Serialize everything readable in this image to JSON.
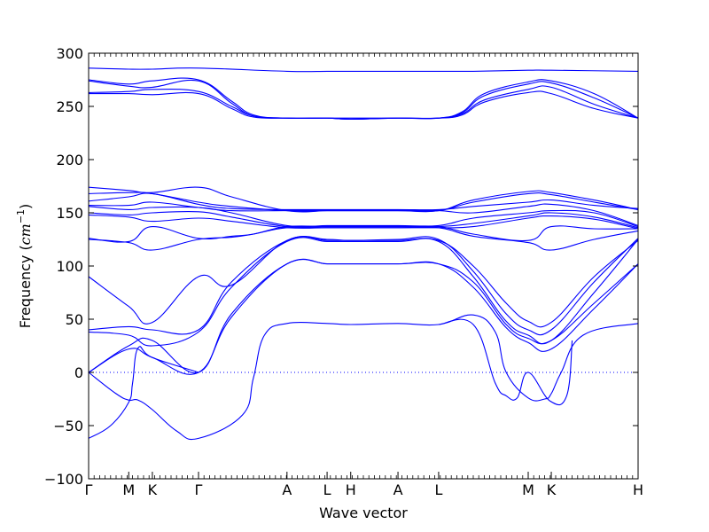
{
  "chart_data": {
    "type": "line",
    "title": "",
    "xlabel": "Wave vector",
    "ylabel_text": "Frequency (",
    "ylabel_math": "cm",
    "ylabel_exp": "−1",
    "ylabel_close": ")",
    "ylim": [
      -100,
      300
    ],
    "yticks": [
      -100,
      -50,
      0,
      50,
      100,
      150,
      200,
      250,
      300
    ],
    "ytick_labels": [
      "−100",
      "−50",
      "0",
      "50",
      "100",
      "150",
      "200",
      "250",
      "300"
    ],
    "xlim": [
      0,
      1
    ],
    "xticks": [
      {
        "label": "Γ",
        "x": 0.0
      },
      {
        "label": "M",
        "x": 0.073
      },
      {
        "label": "K",
        "x": 0.116
      },
      {
        "label": "Γ",
        "x": 0.2
      },
      {
        "label": "A",
        "x": 0.361
      },
      {
        "label": "L",
        "x": 0.434
      },
      {
        "label": "H",
        "x": 0.477
      },
      {
        "label": "A",
        "x": 0.563
      },
      {
        "label": "L",
        "x": 0.637
      },
      {
        "label": "M",
        "x": 0.8
      },
      {
        "label": "K",
        "x": 0.842
      },
      {
        "label": "H",
        "x": 1.0
      }
    ],
    "zero_line": true,
    "line_color": "#0000ff",
    "branches": [
      {
        "x": [
          0,
          0.073,
          0.116,
          0.2,
          0.361,
          0.434,
          0.477,
          0.563,
          0.637,
          0.7,
          0.8,
          0.842,
          1.0
        ],
        "y": [
          286,
          285,
          285,
          286,
          283,
          283,
          283,
          283,
          283,
          283,
          284,
          284,
          283
        ]
      },
      {
        "x": [
          0,
          0.073,
          0.116,
          0.2,
          0.26,
          0.3,
          0.361,
          0.434,
          0.477,
          0.563,
          0.637,
          0.68,
          0.72,
          0.8,
          0.842,
          0.92,
          1.0
        ],
        "y": [
          275,
          271,
          274,
          275,
          255,
          242,
          239,
          239,
          238,
          239,
          239,
          245,
          262,
          273,
          274,
          262,
          239
        ]
      },
      {
        "x": [
          0,
          0.073,
          0.116,
          0.2,
          0.26,
          0.3,
          0.361,
          0.434,
          0.477,
          0.563,
          0.637,
          0.68,
          0.72,
          0.8,
          0.842,
          0.92,
          1.0
        ],
        "y": [
          274,
          269,
          268,
          274,
          253,
          241,
          239,
          239,
          239,
          239,
          239,
          244,
          260,
          271,
          272,
          258,
          239
        ]
      },
      {
        "x": [
          0,
          0.073,
          0.116,
          0.2,
          0.26,
          0.3,
          0.361,
          0.434,
          0.477,
          0.563,
          0.637,
          0.68,
          0.72,
          0.8,
          0.842,
          0.92,
          1.0
        ],
        "y": [
          263,
          264,
          266,
          264,
          250,
          241,
          239,
          239,
          238,
          239,
          239,
          243,
          256,
          266,
          268,
          252,
          239
        ]
      },
      {
        "x": [
          0,
          0.073,
          0.116,
          0.2,
          0.26,
          0.3,
          0.361,
          0.434,
          0.477,
          0.563,
          0.637,
          0.68,
          0.72,
          0.8,
          0.842,
          0.92,
          1.0
        ],
        "y": [
          262,
          262,
          261,
          262,
          248,
          240,
          239,
          239,
          238,
          239,
          239,
          242,
          254,
          263,
          262,
          248,
          239
        ]
      },
      {
        "x": [
          0,
          0.073,
          0.116,
          0.2,
          0.26,
          0.361,
          0.434,
          0.477,
          0.563,
          0.637,
          0.7,
          0.8,
          0.842,
          0.92,
          1.0
        ],
        "y": [
          174,
          171,
          169,
          174,
          165,
          152,
          152,
          152,
          152,
          152,
          162,
          170,
          169,
          162,
          153
        ]
      },
      {
        "x": [
          0,
          0.073,
          0.116,
          0.2,
          0.26,
          0.361,
          0.434,
          0.477,
          0.563,
          0.637,
          0.7,
          0.8,
          0.842,
          0.92,
          1.0
        ],
        "y": [
          168,
          169,
          168,
          160,
          156,
          152,
          152,
          152,
          152,
          152,
          160,
          168,
          167,
          160,
          153
        ]
      },
      {
        "x": [
          0,
          0.073,
          0.116,
          0.2,
          0.26,
          0.361,
          0.434,
          0.477,
          0.563,
          0.637,
          0.7,
          0.8,
          0.842,
          0.92,
          1.0
        ],
        "y": [
          161,
          165,
          168,
          158,
          154,
          153,
          153,
          153,
          153,
          153,
          156,
          160,
          162,
          157,
          154
        ]
      },
      {
        "x": [
          0,
          0.073,
          0.116,
          0.2,
          0.26,
          0.361,
          0.434,
          0.477,
          0.563,
          0.637,
          0.7,
          0.8,
          0.842,
          0.92,
          1.0
        ],
        "y": [
          157,
          157,
          160,
          155,
          152,
          152,
          152,
          152,
          152,
          152,
          150,
          156,
          158,
          152,
          138
        ]
      },
      {
        "x": [
          0,
          0.073,
          0.116,
          0.2,
          0.26,
          0.361,
          0.434,
          0.477,
          0.563,
          0.637,
          0.7,
          0.8,
          0.842,
          0.92,
          1.0
        ],
        "y": [
          156,
          153,
          155,
          155,
          150,
          138,
          138,
          138,
          138,
          138,
          145,
          150,
          152,
          150,
          137
        ]
      },
      {
        "x": [
          0,
          0.073,
          0.116,
          0.2,
          0.26,
          0.361,
          0.434,
          0.477,
          0.563,
          0.637,
          0.7,
          0.8,
          0.842,
          0.92,
          1.0
        ],
        "y": [
          150,
          148,
          150,
          151,
          146,
          137,
          137,
          137,
          137,
          137,
          140,
          147,
          150,
          146,
          136
        ]
      },
      {
        "x": [
          0,
          0.073,
          0.116,
          0.2,
          0.26,
          0.361,
          0.434,
          0.477,
          0.563,
          0.637,
          0.7,
          0.8,
          0.842,
          0.92,
          1.0
        ],
        "y": [
          148,
          146,
          142,
          145,
          142,
          136,
          136,
          136,
          136,
          136,
          137,
          145,
          147,
          144,
          135
        ]
      },
      {
        "x": [
          0,
          0.073,
          0.116,
          0.2,
          0.26,
          0.3,
          0.361,
          0.434,
          0.477,
          0.563,
          0.637,
          0.7,
          0.8,
          0.842,
          0.92,
          1.0
        ],
        "y": [
          126,
          123,
          137,
          126,
          128,
          130,
          137,
          137,
          137,
          137,
          137,
          130,
          124,
          137,
          135,
          135
        ]
      },
      {
        "x": [
          0,
          0.073,
          0.116,
          0.2,
          0.26,
          0.3,
          0.361,
          0.434,
          0.477,
          0.563,
          0.637,
          0.7,
          0.8,
          0.842,
          0.92,
          1.0
        ],
        "y": [
          125,
          122,
          115,
          125,
          127,
          130,
          136,
          136,
          136,
          136,
          136,
          128,
          122,
          115,
          125,
          133
        ]
      },
      {
        "x": [
          0,
          0.073,
          0.116,
          0.2,
          0.26,
          0.361,
          0.434,
          0.477,
          0.563,
          0.637,
          0.7,
          0.76,
          0.8,
          0.842,
          0.92,
          1.0
        ],
        "y": [
          90,
          62,
          47,
          90,
          82,
          124,
          124,
          124,
          124,
          124,
          100,
          65,
          48,
          47,
          90,
          124
        ]
      },
      {
        "x": [
          0,
          0.073,
          0.116,
          0.2,
          0.26,
          0.361,
          0.434,
          0.477,
          0.563,
          0.637,
          0.7,
          0.76,
          0.8,
          0.842,
          0.92,
          1.0
        ],
        "y": [
          40,
          43,
          40,
          40,
          85,
          124,
          125,
          124,
          125,
          125,
          95,
          55,
          40,
          40,
          85,
          126
        ]
      },
      {
        "x": [
          0,
          0.073,
          0.116,
          0.2,
          0.26,
          0.361,
          0.434,
          0.477,
          0.563,
          0.637,
          0.7,
          0.76,
          0.8,
          0.842,
          0.92,
          1.0
        ],
        "y": [
          38,
          35,
          25,
          38,
          80,
          123,
          123,
          123,
          123,
          123,
          90,
          48,
          35,
          30,
          75,
          125
        ]
      },
      {
        "x": [
          0,
          0.073,
          0.116,
          0.2,
          0.26,
          0.361,
          0.434,
          0.477,
          0.563,
          0.637,
          0.7,
          0.76,
          0.8,
          0.842,
          0.92,
          1.0
        ],
        "y": [
          0,
          25,
          30,
          0,
          55,
          102,
          102,
          102,
          102,
          102,
          85,
          45,
          32,
          30,
          65,
          102
        ]
      },
      {
        "x": [
          0,
          0.073,
          0.116,
          0.2,
          0.26,
          0.361,
          0.434,
          0.477,
          0.563,
          0.637,
          0.7,
          0.76,
          0.8,
          0.842,
          0.92,
          1.0
        ],
        "y": [
          0,
          22,
          14,
          0,
          52,
          102,
          102,
          102,
          102,
          102,
          80,
          42,
          28,
          22,
          60,
          102
        ]
      },
      {
        "x": [
          0,
          0.05,
          0.073,
          0.09,
          0.116,
          0.16,
          0.2,
          0.28,
          0.3,
          0.32,
          0.361,
          0.434,
          0.477,
          0.563,
          0.637,
          0.7,
          0.74,
          0.76,
          0.8,
          0.83,
          0.842,
          0.86,
          0.9,
          1.0
        ],
        "y": [
          0,
          -20,
          -26,
          -26,
          -35,
          -55,
          -62,
          -40,
          -5,
          35,
          46,
          46,
          45,
          46,
          45,
          54,
          38,
          0,
          -24,
          -25,
          -20,
          0,
          35,
          46
        ]
      },
      {
        "x": [
          0,
          0.04,
          0.073,
          0.08,
          0.09,
          0.116,
          0.2
        ],
        "y": [
          -62,
          -50,
          -28,
          -10,
          23,
          14,
          0
        ]
      },
      {
        "x": [
          0.637,
          0.7,
          0.74,
          0.76,
          0.78,
          0.8,
          0.84,
          0.87,
          0.88
        ],
        "y": [
          45,
          45,
          -10,
          -22,
          -24,
          0,
          -27,
          -22,
          30
        ]
      }
    ]
  }
}
